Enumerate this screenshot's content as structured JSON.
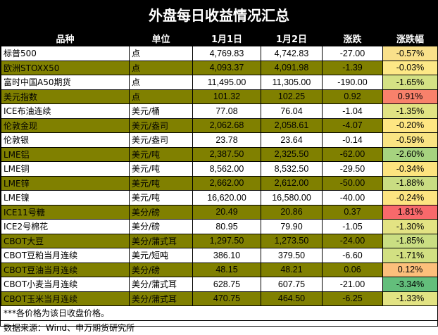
{
  "title": "外盘每日收益情况汇总",
  "headers": [
    "品种",
    "单位",
    "1月1日",
    "1月2日",
    "涨跌",
    "涨跌幅"
  ],
  "rows": [
    {
      "name": "标普500",
      "unit": "点",
      "d1": "4,769.83",
      "d2": "4,742.83",
      "chg": "-27.00",
      "pct": "-0.57%",
      "style": "white",
      "pct_color": "#f9e08a"
    },
    {
      "name": "欧洲STOXX50",
      "unit": "点",
      "d1": "4,093.37",
      "d2": "4,091.98",
      "chg": "-1.39",
      "pct": "-0.03%",
      "style": "olive",
      "pct_color": "#fde886"
    },
    {
      "name": "富时中国A50期货",
      "unit": "点",
      "d1": "11,495.00",
      "d2": "11,305.00",
      "chg": "-190.00",
      "pct": "-1.65%",
      "style": "white",
      "pct_color": "#d4e184"
    },
    {
      "name": "美元指数",
      "unit": "点",
      "d1": "101.32",
      "d2": "102.25",
      "chg": "0.92",
      "pct": "0.91%",
      "style": "olive",
      "pct_color": "#f8816b"
    },
    {
      "name": "ICE布油连续",
      "unit": "美元/桶",
      "d1": "77.08",
      "d2": "76.04",
      "chg": "-1.04",
      "pct": "-1.35%",
      "style": "white",
      "pct_color": "#e1e383"
    },
    {
      "name": "伦敦金现",
      "unit": "美元/盎司",
      "d1": "2,062.68",
      "d2": "2,058.61",
      "chg": "-4.07",
      "pct": "-0.20%",
      "style": "olive",
      "pct_color": "#fee682"
    },
    {
      "name": "伦敦银",
      "unit": "美元/盎司",
      "d1": "23.78",
      "d2": "23.64",
      "chg": "-0.14",
      "pct": "-0.59%",
      "style": "white",
      "pct_color": "#f9e483"
    },
    {
      "name": "LME铝",
      "unit": "美元/吨",
      "d1": "2,387.50",
      "d2": "2,325.50",
      "chg": "-62.00",
      "pct": "-2.60%",
      "style": "olive",
      "pct_color": "#a6d37f"
    },
    {
      "name": "LME铜",
      "unit": "美元/吨",
      "d1": "8,562.00",
      "d2": "8,532.50",
      "chg": "-29.50",
      "pct": "-0.34%",
      "style": "white",
      "pct_color": "#fde47f"
    },
    {
      "name": "LME锌",
      "unit": "美元/吨",
      "d1": "2,662.00",
      "d2": "2,612.00",
      "chg": "-50.00",
      "pct": "-1.88%",
      "style": "olive",
      "pct_color": "#c9dd82"
    },
    {
      "name": "LME镍",
      "unit": "美元/吨",
      "d1": "16,620.00",
      "d2": "16,580.00",
      "chg": "-40.00",
      "pct": "-0.24%",
      "style": "white",
      "pct_color": "#fde481"
    },
    {
      "name": "ICE11号糖",
      "unit": "美分/磅",
      "d1": "20.49",
      "d2": "20.86",
      "chg": "0.37",
      "pct": "1.81%",
      "style": "olive",
      "pct_color": "#f8696b"
    },
    {
      "name": "ICE2号棉花",
      "unit": "美分/磅",
      "d1": "80.95",
      "d2": "79.90",
      "chg": "-1.05",
      "pct": "-1.30%",
      "style": "white",
      "pct_color": "#e3e383"
    },
    {
      "name": "CBOT大豆",
      "unit": "美分/蒲式耳",
      "d1": "1,297.50",
      "d2": "1,273.50",
      "chg": "-24.00",
      "pct": "-1.85%",
      "style": "olive",
      "pct_color": "#cade82"
    },
    {
      "name": "CBOT豆粕当月连续",
      "unit": "美元/短吨",
      "d1": "386.10",
      "d2": "379.50",
      "chg": "-6.60",
      "pct": "-1.71%",
      "style": "white",
      "pct_color": "#d2e082"
    },
    {
      "name": "CBOT豆油当月连续",
      "unit": "美分/磅",
      "d1": "48.15",
      "d2": "48.21",
      "chg": "0.06",
      "pct": "0.12%",
      "style": "olive",
      "pct_color": "#fcbf7b"
    },
    {
      "name": "CBOT小麦当月连续",
      "unit": "美分/蒲式耳",
      "d1": "628.75",
      "d2": "607.75",
      "chg": "-21.00",
      "pct": "-3.34%",
      "style": "white",
      "pct_color": "#63be7b"
    },
    {
      "name": "CBOT玉米当月连续",
      "unit": "美分/蒲式耳",
      "d1": "470.75",
      "d2": "464.50",
      "chg": "-6.25",
      "pct": "-1.33%",
      "style": "olive",
      "pct_color": "#e2e383"
    }
  ],
  "footnote": "***各价格为该日收盘价格。",
  "source": "数据来源：Wind、申万期货研究所"
}
